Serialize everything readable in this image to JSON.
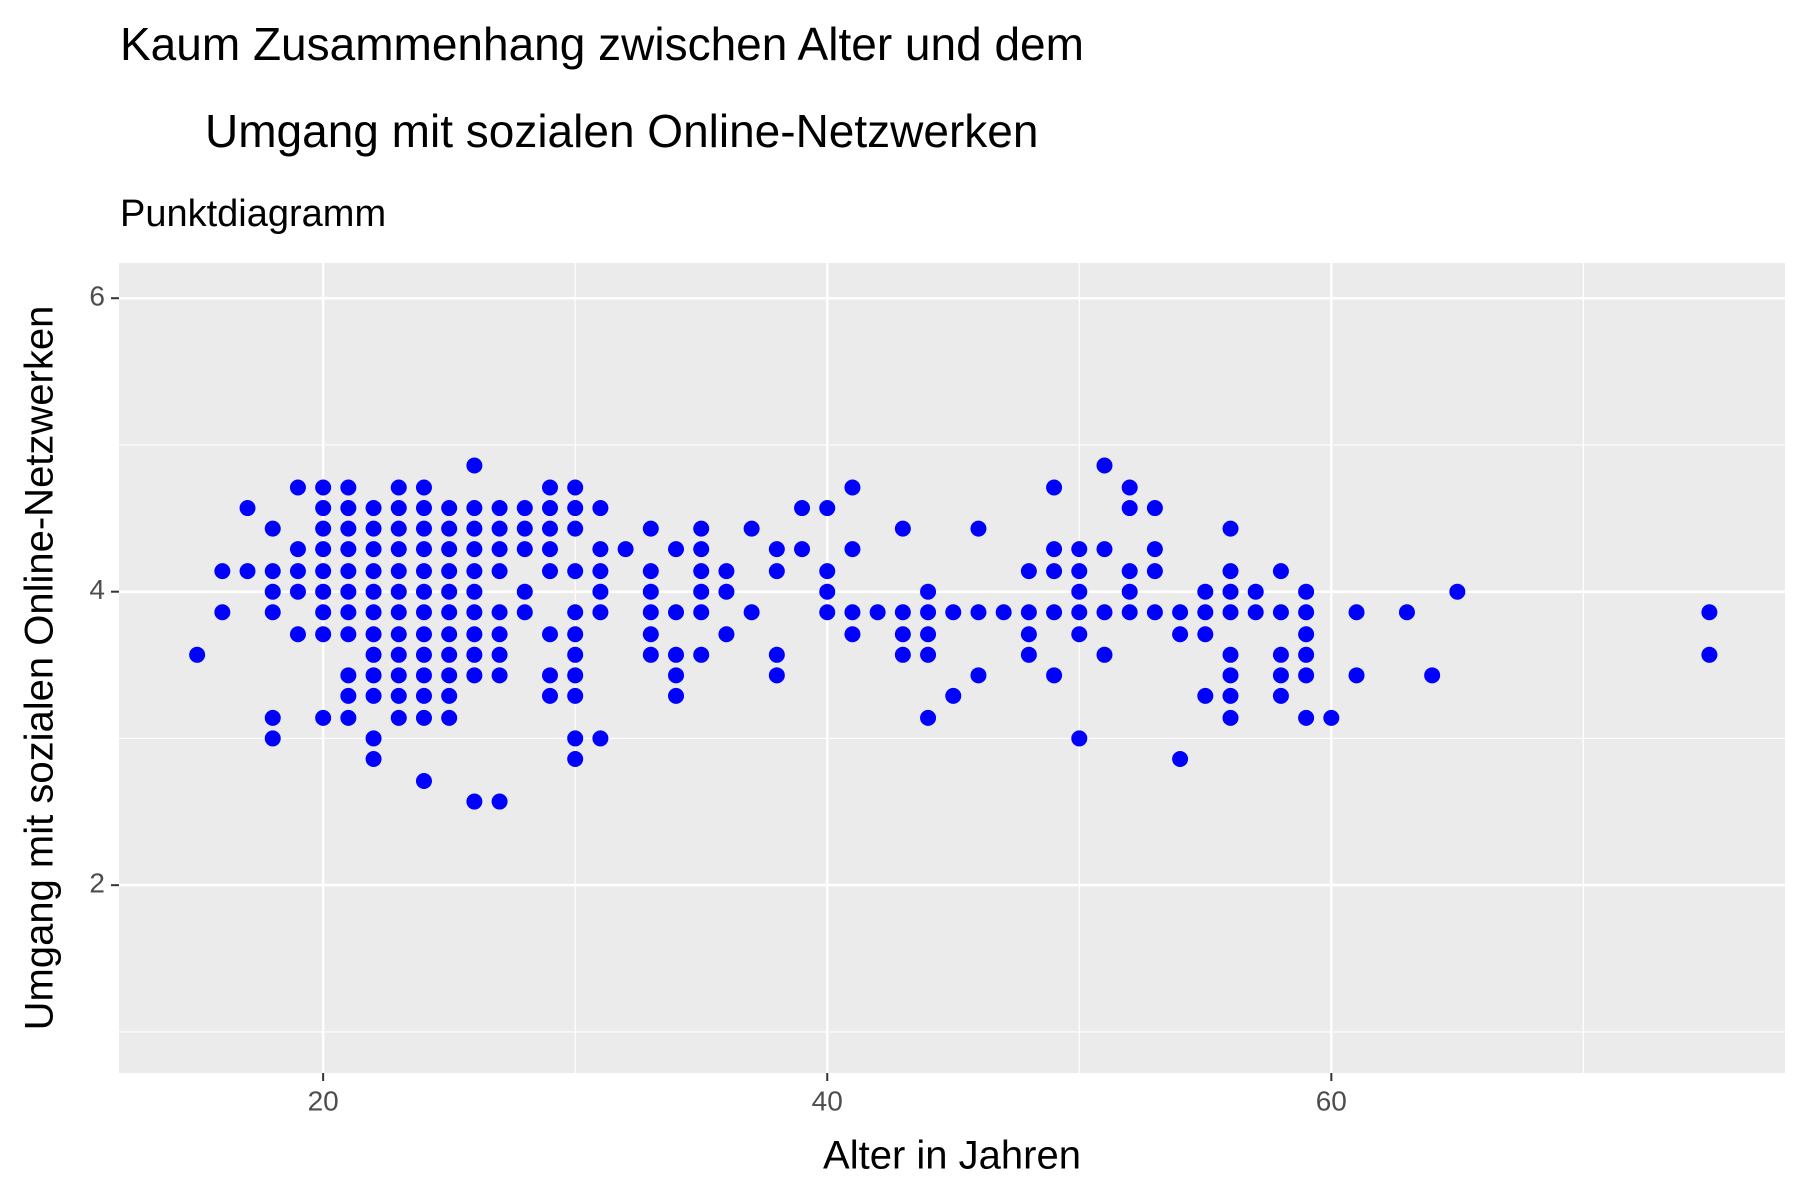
{
  "chart_data": {
    "type": "scatter",
    "title": [
      "Kaum Zusammenhang zwischen Alter und dem",
      "Umgang mit sozialen Online-Netzwerken"
    ],
    "subtitle": "Punktdiagramm",
    "x_label": "Alter in Jahren",
    "y_label": "Umgang mit sozialen Online-Netzwerken",
    "color": "#0000ff",
    "xlim": [
      11.9,
      78
    ],
    "ylim": [
      0.72,
      6.24
    ],
    "xticks": [
      20,
      40,
      60
    ],
    "yticks": [
      2,
      4,
      6
    ],
    "x_minor_grid": [
      30,
      50,
      70
    ],
    "y_minor_grid": [
      1,
      3,
      5
    ],
    "grid": true,
    "x": [
      15,
      16,
      16,
      17,
      17,
      18,
      18,
      18,
      18,
      18,
      18,
      19,
      19,
      19,
      19,
      19,
      20,
      20,
      20,
      20,
      20,
      20,
      20,
      20,
      20,
      21,
      21,
      21,
      21,
      21,
      21,
      21,
      21,
      21,
      21,
      21,
      22,
      22,
      22,
      22,
      22,
      22,
      22,
      22,
      22,
      22,
      22,
      22,
      23,
      23,
      23,
      23,
      23,
      23,
      23,
      23,
      23,
      23,
      23,
      23,
      24,
      24,
      24,
      24,
      24,
      24,
      24,
      24,
      24,
      24,
      24,
      24,
      24,
      25,
      25,
      25,
      25,
      25,
      25,
      25,
      25,
      25,
      25,
      25,
      26,
      26,
      26,
      26,
      26,
      26,
      26,
      26,
      26,
      26,
      26,
      27,
      27,
      27,
      27,
      27,
      27,
      27,
      27,
      27,
      28,
      28,
      28,
      28,
      28,
      29,
      29,
      29,
      29,
      29,
      29,
      29,
      29,
      30,
      30,
      30,
      30,
      30,
      30,
      30,
      30,
      30,
      30,
      30,
      31,
      31,
      31,
      31,
      31,
      31,
      32,
      33,
      33,
      33,
      33,
      33,
      33,
      34,
      34,
      34,
      34,
      34,
      35,
      35,
      35,
      35,
      35,
      35,
      36,
      36,
      36,
      37,
      37,
      38,
      38,
      38,
      38,
      39,
      39,
      40,
      40,
      40,
      40,
      41,
      41,
      41,
      41,
      42,
      43,
      43,
      43,
      43,
      44,
      44,
      44,
      44,
      44,
      45,
      45,
      46,
      46,
      46,
      47,
      48,
      48,
      48,
      48,
      49,
      49,
      49,
      49,
      49,
      50,
      50,
      50,
      50,
      50,
      50,
      51,
      51,
      51,
      51,
      52,
      52,
      52,
      52,
      52,
      53,
      53,
      53,
      53,
      54,
      54,
      54,
      55,
      55,
      55,
      55,
      56,
      56,
      56,
      56,
      56,
      56,
      56,
      56,
      57,
      57,
      58,
      58,
      58,
      58,
      58,
      59,
      59,
      59,
      59,
      59,
      59,
      60,
      61,
      61,
      63,
      64,
      65,
      75,
      75
    ],
    "values": [
      3.57,
      4.14,
      3.86,
      4.57,
      4.14,
      4.43,
      4.14,
      4,
      3.86,
      3.14,
      3,
      4.71,
      4.29,
      4.14,
      4,
      3.71,
      4.71,
      4.57,
      4.43,
      4.29,
      4.14,
      4,
      3.86,
      3.71,
      3.14,
      4.71,
      4.57,
      4.43,
      4.29,
      4.14,
      4,
      3.86,
      3.71,
      3.43,
      3.29,
      3.14,
      4.57,
      4.43,
      4.29,
      4.14,
      4,
      3.86,
      3.71,
      3.57,
      3.43,
      3.29,
      3,
      2.86,
      4.71,
      4.57,
      4.43,
      4.29,
      4.14,
      4,
      3.86,
      3.71,
      3.57,
      3.43,
      3.29,
      3.14,
      4.71,
      4.57,
      4.43,
      4.29,
      4.14,
      4,
      3.86,
      3.71,
      3.57,
      3.43,
      3.29,
      3.14,
      2.71,
      4.57,
      4.43,
      4.29,
      4.14,
      4,
      3.86,
      3.71,
      3.57,
      3.43,
      3.29,
      3.14,
      4.86,
      4.57,
      4.43,
      4.29,
      4.14,
      4,
      3.86,
      3.71,
      3.57,
      3.43,
      2.57,
      4.57,
      4.43,
      4.29,
      4.14,
      3.86,
      3.71,
      3.57,
      3.43,
      2.57,
      4.57,
      4.43,
      4.29,
      4,
      3.86,
      4.71,
      4.57,
      4.43,
      4.29,
      4.14,
      3.71,
      3.43,
      3.29,
      4.71,
      4.57,
      4.43,
      4.14,
      3.86,
      3.71,
      3.57,
      3.43,
      3.29,
      3,
      2.86,
      4.57,
      4.29,
      4.14,
      4,
      3.86,
      3,
      4.29,
      4.43,
      4.14,
      4,
      3.86,
      3.71,
      3.57,
      4.29,
      3.86,
      3.57,
      3.43,
      3.29,
      4.43,
      4.29,
      4.14,
      4,
      3.86,
      3.57,
      4.14,
      4,
      3.71,
      4.43,
      3.86,
      4.29,
      4.14,
      3.57,
      3.43,
      4.57,
      4.29,
      4.57,
      4.14,
      4,
      3.86,
      4.71,
      4.29,
      3.86,
      3.71,
      3.86,
      4.43,
      3.86,
      3.71,
      3.57,
      4,
      3.86,
      3.71,
      3.57,
      3.14,
      3.86,
      3.29,
      4.43,
      3.86,
      3.43,
      3.86,
      4.14,
      3.86,
      3.71,
      3.57,
      4.71,
      4.29,
      4.14,
      3.86,
      3.43,
      4.29,
      4.14,
      4,
      3.86,
      3.71,
      3,
      4.86,
      4.29,
      3.86,
      3.57,
      4.71,
      4.57,
      4.14,
      4,
      3.86,
      4.57,
      4.29,
      4.14,
      3.86,
      3.86,
      3.71,
      2.86,
      4,
      3.86,
      3.71,
      3.29,
      4.43,
      4.14,
      4,
      3.86,
      3.57,
      3.43,
      3.29,
      3.14,
      4,
      3.86,
      4.14,
      3.86,
      3.57,
      3.43,
      3.29,
      4,
      3.86,
      3.71,
      3.57,
      3.43,
      3.14,
      3.14,
      3.86,
      3.43,
      3.86,
      3.43,
      4,
      3.86,
      3.57
    ]
  }
}
